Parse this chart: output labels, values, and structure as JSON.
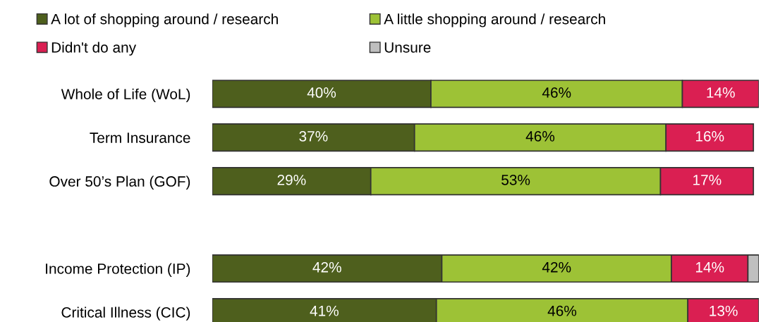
{
  "chart_data": {
    "type": "bar",
    "orientation": "horizontal",
    "stacked": true,
    "legend": "top",
    "categories": [
      "Whole of Life (WoL)",
      "Term Insurance",
      "Over 50’s Plan (GOF)",
      null,
      "Income Protection (IP)",
      "Critical Illness (CIC)"
    ],
    "xlim": [
      0,
      100
    ],
    "tick_labels": "y",
    "series": [
      {
        "name": "A lot of shopping around / research",
        "color": "#4e5f1d",
        "values": [
          40,
          37,
          29,
          null,
          42,
          41
        ],
        "value_labels": [
          "40%",
          "37%",
          "29%",
          null,
          "42%",
          "41%"
        ]
      },
      {
        "name": "A little shopping around / research",
        "color": "#9dc236",
        "values": [
          46,
          46,
          53,
          null,
          42,
          46
        ],
        "value_labels": [
          "46%",
          "46%",
          "53%",
          null,
          "42%",
          "46%"
        ]
      },
      {
        "name": "Didn't do any",
        "color": "#da1f52",
        "values": [
          14,
          16,
          17,
          null,
          14,
          13
        ],
        "value_labels": [
          "14%",
          "16%",
          "17%",
          null,
          "14%",
          "13%"
        ]
      },
      {
        "name": "Unsure",
        "color": "#bfbfbf",
        "values": [
          null,
          null,
          null,
          null,
          2,
          null
        ]
      }
    ]
  }
}
